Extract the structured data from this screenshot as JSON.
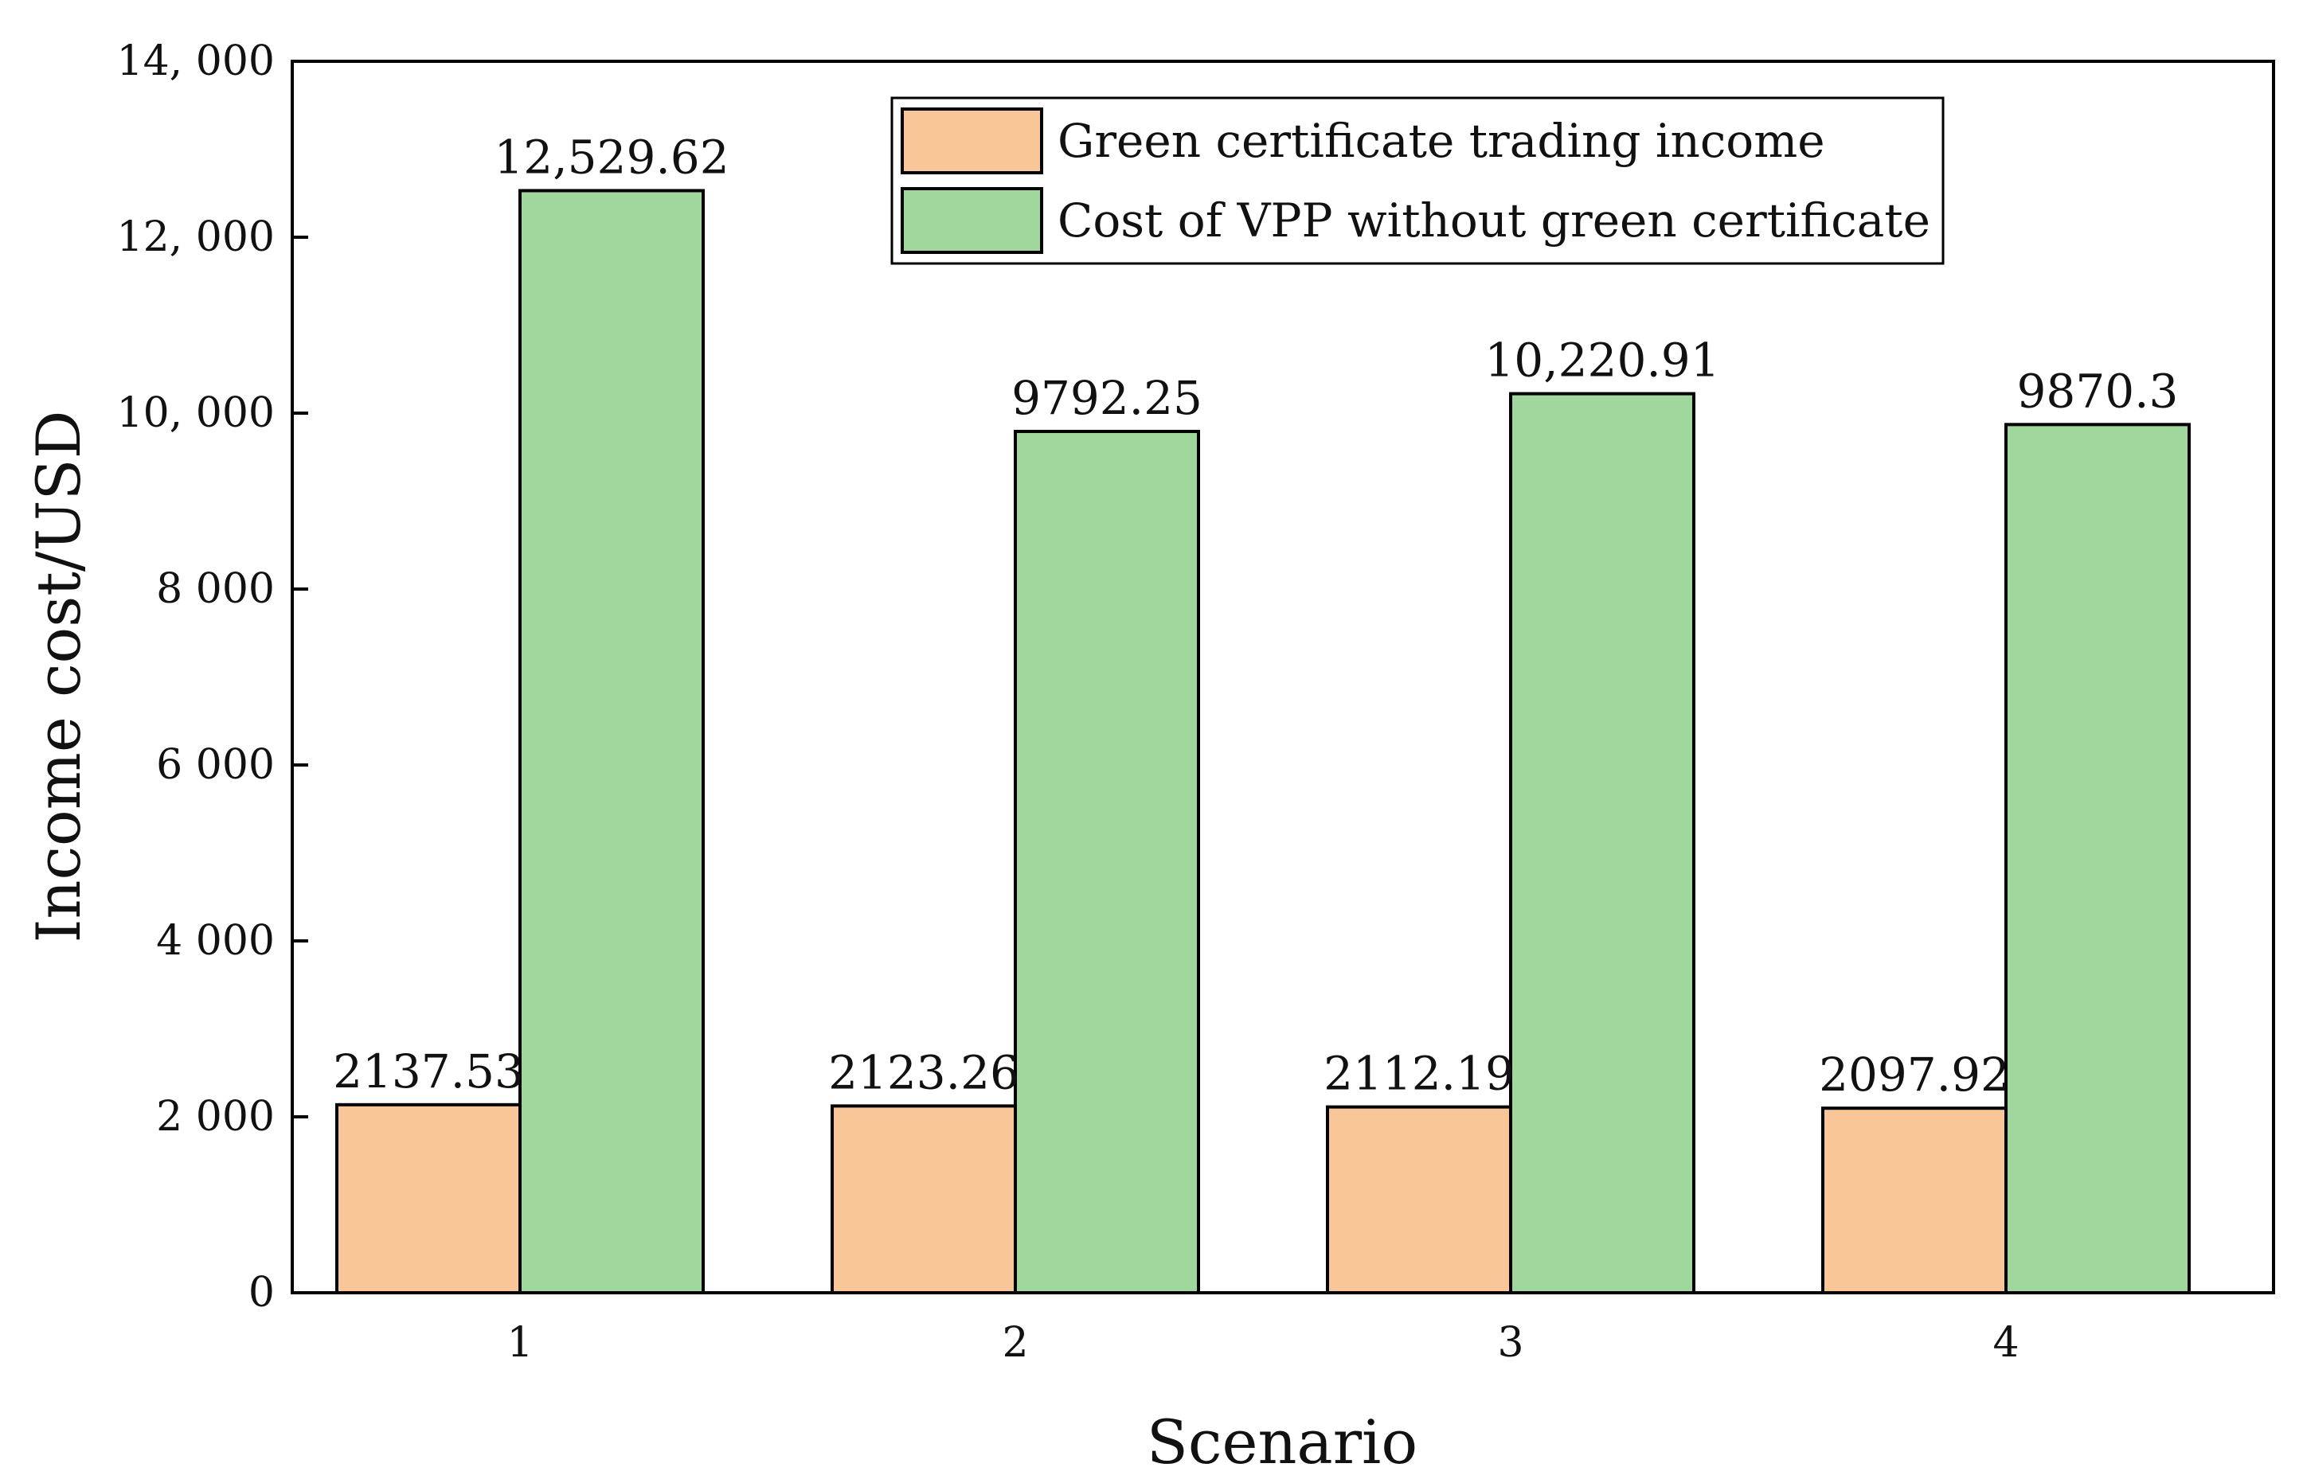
{
  "chart_data": {
    "type": "bar",
    "title": "",
    "xlabel": "Scenario",
    "ylabel": "Income cost/USD",
    "categories": [
      "1",
      "2",
      "3",
      "4"
    ],
    "series": [
      {
        "name": "Green certificate trading income",
        "color": "#f9c697",
        "values": [
          2137.53,
          2123.26,
          2112.19,
          2097.92
        ],
        "labels": [
          "2137.53",
          "2123.26",
          "2112.19",
          "2097.92"
        ]
      },
      {
        "name": "Cost of VPP without green certificate",
        "color": "#9fd79d",
        "values": [
          12529.62,
          9792.25,
          10220.91,
          9870.3
        ],
        "labels": [
          "12,529.62",
          "9792.25",
          "10,220.91",
          "9870.3"
        ]
      }
    ],
    "ylim": [
      0,
      14000
    ],
    "yticks": [
      0,
      2000,
      4000,
      6000,
      8000,
      10000,
      12000,
      14000
    ],
    "ytick_labels": [
      "0",
      "2 000",
      "4 000",
      "6 000",
      "8 000",
      "10, 000",
      "12, 000",
      "14, 000"
    ],
    "grid": false,
    "legend_position": "top-center"
  }
}
